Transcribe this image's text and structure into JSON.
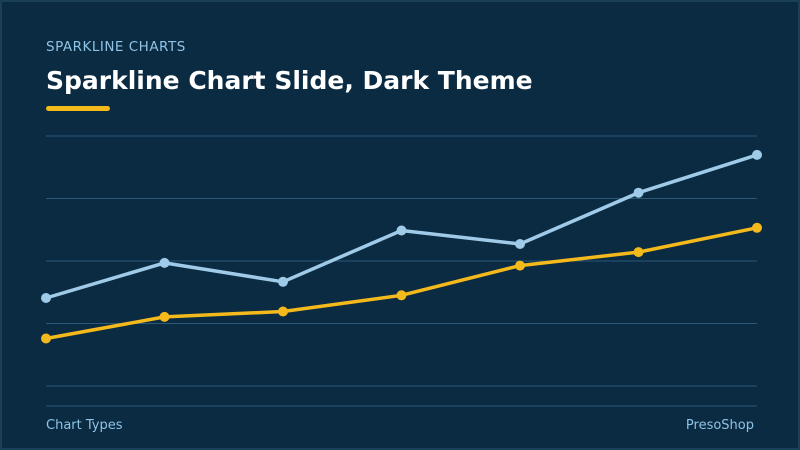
{
  "slide": {
    "kicker": "SPARKLINE CHARTS",
    "title": "Sparkline Chart Slide, Dark Theme",
    "footer_left": "Chart Types",
    "footer_right": "PresoShop"
  },
  "colors": {
    "background": "#0b2b43",
    "gridline": "#2a5a78",
    "accent": "#f4b91b",
    "series_light": "#9fcbe8",
    "series_gold": "#f4b91b",
    "text_muted": "#8fc3e6"
  },
  "chart_data": {
    "type": "line",
    "x": [
      1,
      2,
      3,
      4,
      5,
      6,
      7
    ],
    "ylim": [
      0,
      100
    ],
    "grid": true,
    "legend": "none",
    "series": [
      {
        "color": "#9fcbe8",
        "values": [
          40,
          53,
          46,
          65,
          60,
          79,
          93
        ]
      },
      {
        "color": "#f4b91b",
        "values": [
          25,
          33,
          35,
          41,
          52,
          57,
          66
        ]
      }
    ]
  }
}
